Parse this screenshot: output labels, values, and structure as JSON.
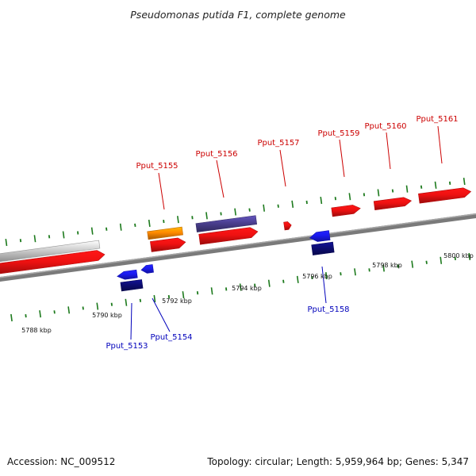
{
  "title": "Pseudomonas putida F1, complete genome",
  "footer": {
    "accession": "Accession: NC_009512",
    "summary": "Topology: circular; Length: 5,959,964 bp; Genes: 5,347"
  },
  "colors": {
    "backbone": "#7a7a7a",
    "tick": "#1d7a1d",
    "forward_label": "#cc0000",
    "reverse_label": "#0000bb",
    "red": "#ee1111",
    "orange": "#ff8a00",
    "purple": "#4a3f8f",
    "gray": "#c8c8c8",
    "blue": "#1a1aee",
    "navy": "#0d0d72"
  },
  "scale_labels": [
    "5788 kbp",
    "5790 kbp",
    "5792 kbp",
    "5794 kbp",
    "5796 kbp",
    "5798 kbp",
    "5800 kbp"
  ],
  "gene_labels": {
    "forward": [
      "Pput_5155",
      "Pput_5156",
      "Pput_5157",
      "Pput_5159",
      "Pput_5160",
      "Pput_5161"
    ],
    "reverse": [
      "Pput_5153",
      "Pput_5154",
      "Pput_5158"
    ]
  },
  "features": [
    {
      "color": "red",
      "shape": "arrow-right"
    },
    {
      "color": "gray",
      "shape": "block"
    },
    {
      "color": "orange",
      "shape": "block"
    },
    {
      "color": "red",
      "shape": "arrow-right"
    },
    {
      "color": "purple",
      "shape": "block"
    },
    {
      "color": "red",
      "shape": "arrow-right"
    },
    {
      "color": "red",
      "shape": "arrow-right"
    },
    {
      "color": "red",
      "shape": "arrow-right"
    },
    {
      "color": "red",
      "shape": "arrow-right"
    },
    {
      "color": "red",
      "shape": "arrow-right"
    },
    {
      "color": "blue",
      "shape": "arrow-left"
    },
    {
      "color": "blue",
      "shape": "arrow-left"
    },
    {
      "color": "navy",
      "shape": "block"
    },
    {
      "color": "blue",
      "shape": "arrow-left"
    },
    {
      "color": "navy",
      "shape": "block"
    }
  ]
}
